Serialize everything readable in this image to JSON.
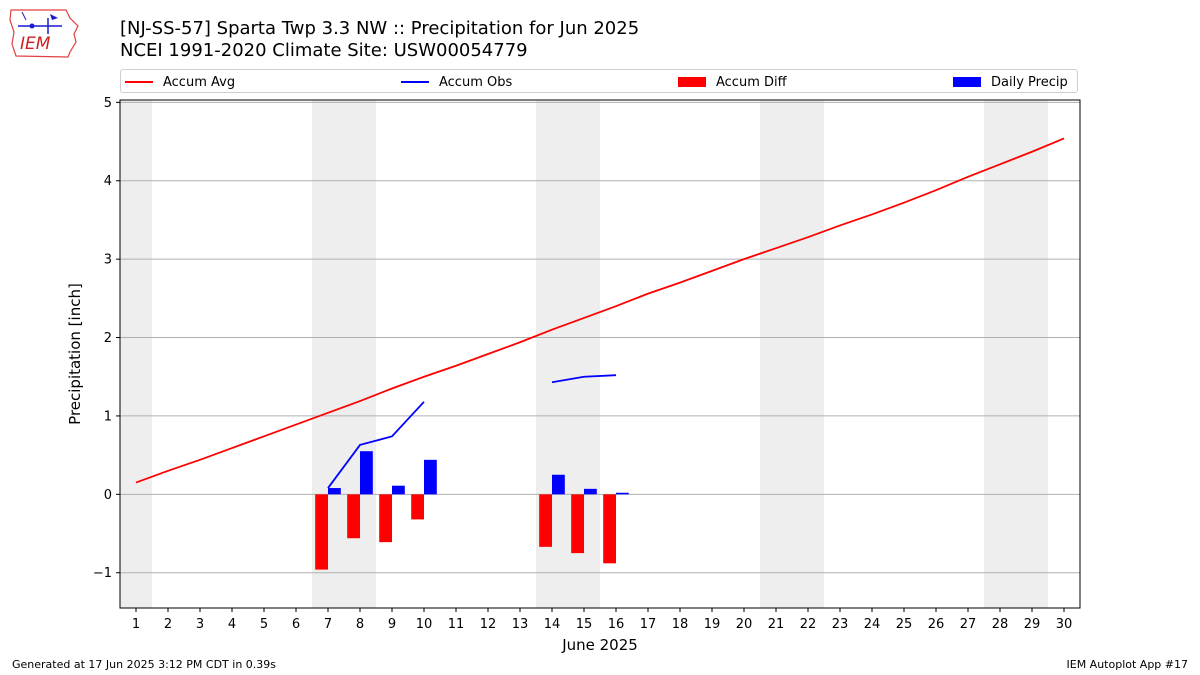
{
  "header": {
    "title": "[NJ-SS-57] Sparta Twp 3.3 NW :: Precipitation for Jun 2025",
    "subtitle": "NCEI 1991-2020 Climate Site: USW00054779",
    "logo_text": "IEM",
    "logo_icon": "iowa-state-weather-logo-icon"
  },
  "footer": {
    "left": "Generated at 17 Jun 2025 3:12 PM CDT in 0.39s",
    "right": "IEM Autoplot App #17"
  },
  "colors": {
    "accum_avg": "#ff0000",
    "accum_obs": "#0000ff",
    "accum_diff": "#ff0000",
    "daily_precip": "#0000ff",
    "weekend_shade": "#eeeeee",
    "grid": "#b0b0b0"
  },
  "chart_data": {
    "type": "bar",
    "xlabel": "June 2025",
    "ylabel": "Precipitation [inch]",
    "xlim": [
      0.5,
      30.5
    ],
    "ylim": [
      -1.45,
      5.03
    ],
    "yticks": [
      -1,
      0,
      1,
      2,
      3,
      4,
      5
    ],
    "ytick_labels": [
      "−1",
      "0",
      "1",
      "2",
      "3",
      "4",
      "5"
    ],
    "xticks": [
      1,
      2,
      3,
      4,
      5,
      6,
      7,
      8,
      9,
      10,
      11,
      12,
      13,
      14,
      15,
      16,
      17,
      18,
      19,
      20,
      21,
      22,
      23,
      24,
      25,
      26,
      27,
      28,
      29,
      30
    ],
    "grid": "horizontal",
    "legend": "top",
    "shaded_weekend_days": [
      1,
      7,
      8,
      14,
      15,
      21,
      22,
      28,
      29
    ],
    "series": [
      {
        "name": "Accum Avg",
        "kind": "line",
        "x": [
          1,
          2,
          3,
          4,
          5,
          6,
          7,
          8,
          9,
          10,
          11,
          12,
          13,
          14,
          15,
          16,
          17,
          18,
          19,
          20,
          21,
          22,
          23,
          24,
          25,
          26,
          27,
          28,
          29,
          30
        ],
        "values": [
          0.15,
          0.3,
          0.44,
          0.59,
          0.74,
          0.89,
          1.04,
          1.19,
          1.35,
          1.5,
          1.64,
          1.79,
          1.94,
          2.1,
          2.25,
          2.4,
          2.56,
          2.7,
          2.85,
          3.0,
          3.14,
          3.28,
          3.43,
          3.57,
          3.72,
          3.88,
          4.05,
          4.21,
          4.37,
          4.54
        ]
      },
      {
        "name": "Accum Obs",
        "kind": "line",
        "segments": [
          {
            "x": [
              7,
              8,
              9,
              10
            ],
            "values": [
              0.08,
              0.63,
              0.74,
              1.18
            ]
          },
          {
            "x": [
              14,
              15,
              16
            ],
            "values": [
              1.43,
              1.5,
              1.52
            ]
          }
        ]
      },
      {
        "name": "Accum Diff",
        "kind": "bar",
        "x": [
          7,
          8,
          9,
          10,
          14,
          15,
          16
        ],
        "values": [
          -0.96,
          -0.56,
          -0.61,
          -0.32,
          -0.67,
          -0.75,
          -0.88
        ]
      },
      {
        "name": "Daily Precip",
        "kind": "bar",
        "x": [
          7,
          8,
          9,
          10,
          14,
          15,
          16
        ],
        "values": [
          0.08,
          0.55,
          0.11,
          0.44,
          0.25,
          0.07,
          0.02
        ]
      }
    ]
  }
}
